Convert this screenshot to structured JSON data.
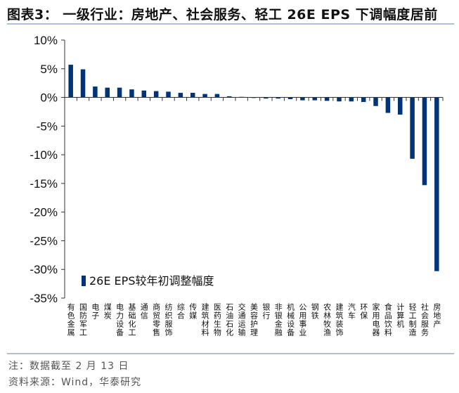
{
  "title": "图表3： 一级行业：房地产、社会服务、轻工 26E EPS 下调幅度居前",
  "note": "注：数据截至 2 月 13 日",
  "source": "资料来源：Wind，华泰研究",
  "chart_data": {
    "type": "bar",
    "ylabel": "",
    "xlabel": "",
    "ylim": [
      -35,
      10
    ],
    "yticks": [
      "10%",
      "5%",
      "0%",
      "-5%",
      "-10%",
      "-15%",
      "-20%",
      "-25%",
      "-30%",
      "-35%"
    ],
    "ytick_values": [
      10,
      5,
      0,
      -5,
      -10,
      -15,
      -20,
      -25,
      -30,
      -35
    ],
    "grid": false,
    "legend_position": "bottom-left",
    "bar_color": "#003478",
    "categories": [
      "有色金属",
      "国防军工",
      "电子",
      "煤炭",
      "电力设备",
      "基础化工",
      "通信",
      "商贸零售",
      "纺织服饰",
      "综合",
      "传媒",
      "建筑材料",
      "医药生物",
      "石油石化",
      "交通运输",
      "美容护理",
      "银行",
      "非银金融",
      "机械设备",
      "公用事业",
      "钢铁",
      "农林牧渔",
      "建筑装饰",
      "汽车",
      "环保",
      "家用电器",
      "食品饮料",
      "计算机",
      "轻工制造",
      "社会服务",
      "房地产"
    ],
    "series": [
      {
        "name": "26E EPS较年初调整幅度",
        "values": [
          5.7,
          4.9,
          1.9,
          1.7,
          1.7,
          1.4,
          1.2,
          1.1,
          1.0,
          0.8,
          0.8,
          0.6,
          0.6,
          0.2,
          0.1,
          -0.1,
          -0.2,
          -0.2,
          -0.3,
          -0.5,
          -0.5,
          -0.6,
          -0.7,
          -0.7,
          -0.8,
          -1.5,
          -2.7,
          -3.0,
          -10.7,
          -15.3,
          -30.3
        ]
      }
    ]
  }
}
